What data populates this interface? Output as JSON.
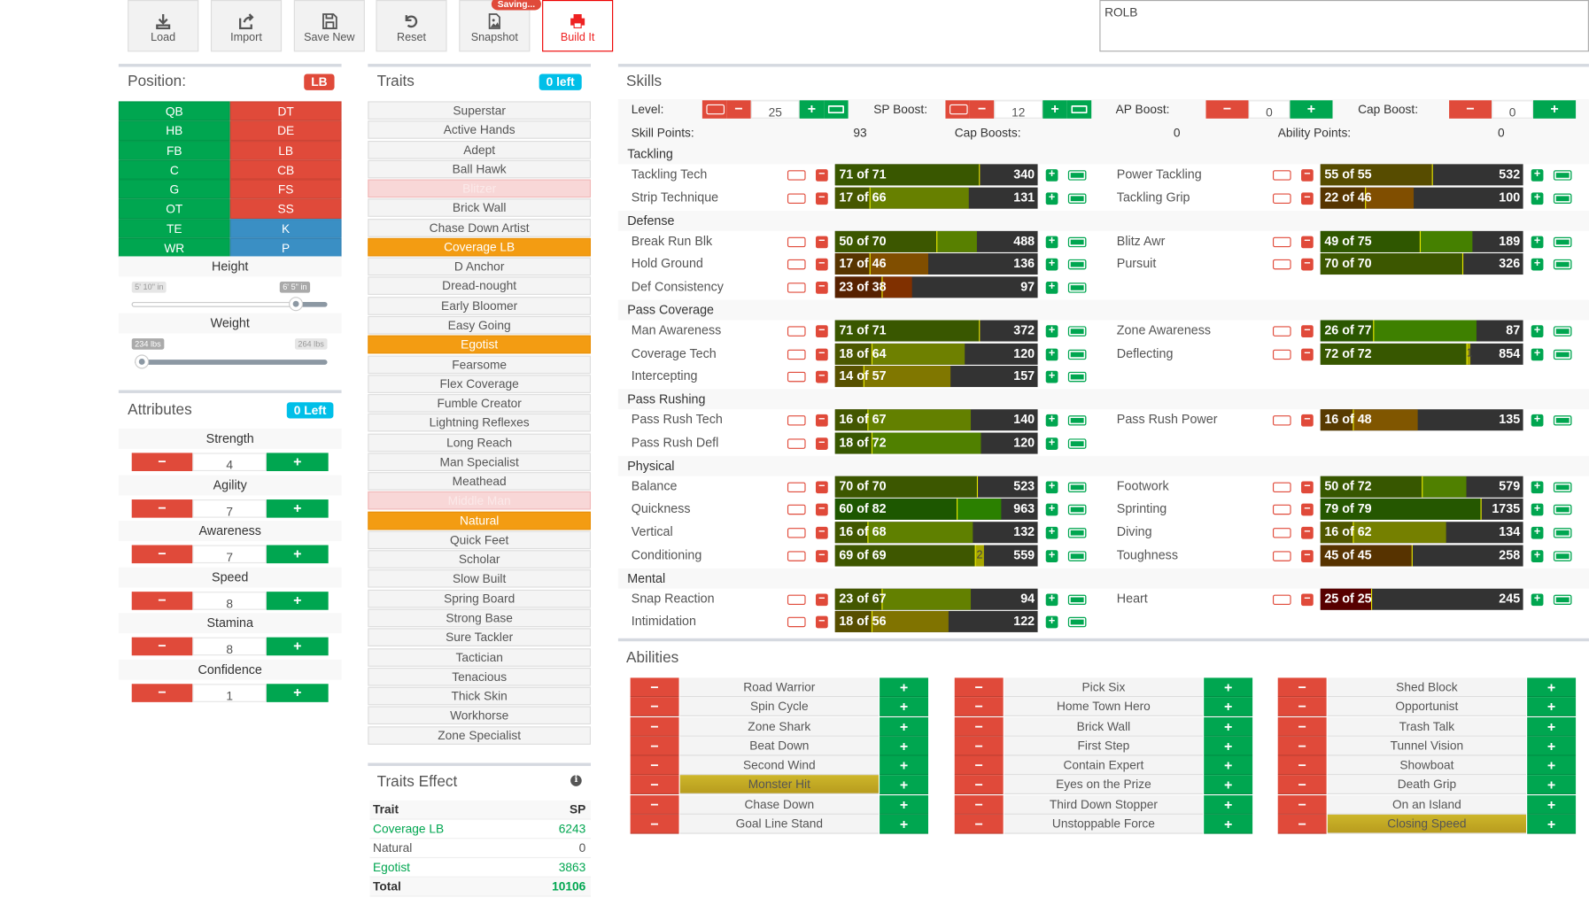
{
  "toolbar": {
    "buttons": [
      {
        "label": "Load",
        "icon": "download-icon"
      },
      {
        "label": "Import",
        "icon": "share-icon"
      },
      {
        "label": "Save New",
        "icon": "floppy-icon"
      },
      {
        "label": "Reset",
        "icon": "undo-icon"
      },
      {
        "label": "Snapshot",
        "icon": "image-file-icon"
      },
      {
        "label": "Build It",
        "icon": "printer-icon"
      }
    ],
    "saving_badge": "Saving...",
    "notes_value": "ROLB"
  },
  "position": {
    "title": "Position:",
    "selected": "LB",
    "grid": [
      [
        "QB",
        "DT"
      ],
      [
        "HB",
        "DE"
      ],
      [
        "FB",
        "LB"
      ],
      [
        "C",
        "CB"
      ],
      [
        "G",
        "FS"
      ],
      [
        "OT",
        "SS"
      ],
      [
        "TE",
        "K"
      ],
      [
        "WR",
        "P"
      ]
    ],
    "height": {
      "label": "Height",
      "min": "5' 10\" in",
      "max": "6' 5\" in",
      "value": "6' 5\" in"
    },
    "weight": {
      "label": "Weight",
      "min": "234 lbs",
      "max": "264 lbs",
      "value": "234 lbs"
    }
  },
  "attributes": {
    "title": "Attributes",
    "left_badge": "0 Left",
    "items": [
      {
        "label": "Strength",
        "value": "4"
      },
      {
        "label": "Agility",
        "value": "7"
      },
      {
        "label": "Awareness",
        "value": "7"
      },
      {
        "label": "Speed",
        "value": "8"
      },
      {
        "label": "Stamina",
        "value": "8"
      },
      {
        "label": "Confidence",
        "value": "1"
      }
    ]
  },
  "traits": {
    "title": "Traits",
    "left_badge": "0 left",
    "items": [
      {
        "label": "Superstar",
        "state": ""
      },
      {
        "label": "Active Hands",
        "state": ""
      },
      {
        "label": "Adept",
        "state": ""
      },
      {
        "label": "Ball Hawk",
        "state": ""
      },
      {
        "label": "Blitzer",
        "state": "disabled"
      },
      {
        "label": "Brick Wall",
        "state": ""
      },
      {
        "label": "Chase Down Artist",
        "state": ""
      },
      {
        "label": "Coverage LB",
        "state": "selected"
      },
      {
        "label": "D Anchor",
        "state": ""
      },
      {
        "label": "Dread-nought",
        "state": ""
      },
      {
        "label": "Early Bloomer",
        "state": ""
      },
      {
        "label": "Easy Going",
        "state": ""
      },
      {
        "label": "Egotist",
        "state": "selected"
      },
      {
        "label": "Fearsome",
        "state": ""
      },
      {
        "label": "Flex Coverage",
        "state": ""
      },
      {
        "label": "Fumble Creator",
        "state": ""
      },
      {
        "label": "Lightning Reflexes",
        "state": ""
      },
      {
        "label": "Long Reach",
        "state": ""
      },
      {
        "label": "Man Specialist",
        "state": ""
      },
      {
        "label": "Meathead",
        "state": ""
      },
      {
        "label": "Middle Man",
        "state": "disabled"
      },
      {
        "label": "Natural",
        "state": "selected"
      },
      {
        "label": "Quick Feet",
        "state": ""
      },
      {
        "label": "Scholar",
        "state": ""
      },
      {
        "label": "Slow Built",
        "state": ""
      },
      {
        "label": "Spring Board",
        "state": ""
      },
      {
        "label": "Strong Base",
        "state": ""
      },
      {
        "label": "Sure Tackler",
        "state": ""
      },
      {
        "label": "Tactician",
        "state": ""
      },
      {
        "label": "Tenacious",
        "state": ""
      },
      {
        "label": "Thick Skin",
        "state": ""
      },
      {
        "label": "Workhorse",
        "state": ""
      },
      {
        "label": "Zone Specialist",
        "state": ""
      }
    ]
  },
  "traits_effect": {
    "title": "Traits Effect",
    "header": {
      "trait": "Trait",
      "sp": "SP"
    },
    "rows": [
      {
        "trait": "Coverage LB",
        "sp": "6243",
        "highlight": true
      },
      {
        "trait": "Natural",
        "sp": "0",
        "highlight": false
      },
      {
        "trait": "Egotist",
        "sp": "3863",
        "highlight": true
      }
    ],
    "total": {
      "label": "Total",
      "sp": "10106"
    }
  },
  "skills": {
    "title": "Skills",
    "level": {
      "label": "Level:",
      "value": "25"
    },
    "sp_boost": {
      "label": "SP Boost:",
      "value": "12"
    },
    "ap_boost": {
      "label": "AP Boost:",
      "value": "0"
    },
    "cap_boost": {
      "label": "Cap Boost:",
      "value": "0"
    },
    "skill_points": {
      "label": "Skill Points:",
      "value": "93"
    },
    "cap_boosts": {
      "label": "Cap Boosts:",
      "value": "0"
    },
    "ability_points": {
      "label": "Ability Points:",
      "value": "0"
    },
    "categories": [
      {
        "name": "Tackling",
        "left": [
          {
            "name": "Tackling Tech",
            "value": 71,
            "max": 71,
            "cost": "340"
          },
          {
            "name": "Strip Technique",
            "value": 17,
            "max": 66,
            "cost": "131"
          }
        ],
        "right": [
          {
            "name": "Power Tackling",
            "value": 55,
            "max": 55,
            "cost": "532"
          },
          {
            "name": "Tackling Grip",
            "value": 22,
            "max": 46,
            "cost": "100"
          }
        ]
      },
      {
        "name": "Defense",
        "left": [
          {
            "name": "Break Run Blk",
            "value": 50,
            "max": 70,
            "cost": "488"
          },
          {
            "name": "Hold Ground",
            "value": 17,
            "max": 46,
            "cost": "136"
          },
          {
            "name": "Def Consistency",
            "value": 23,
            "max": 38,
            "cost": "97"
          }
        ],
        "right": [
          {
            "name": "Blitz Awr",
            "value": 49,
            "max": 75,
            "cost": "189"
          },
          {
            "name": "Pursuit",
            "value": 70,
            "max": 70,
            "cost": "326"
          }
        ]
      },
      {
        "name": "Pass Coverage",
        "left": [
          {
            "name": "Man Awareness",
            "value": 71,
            "max": 71,
            "cost": "372"
          },
          {
            "name": "Coverage Tech",
            "value": 18,
            "max": 64,
            "cost": "120"
          },
          {
            "name": "Intercepting",
            "value": 14,
            "max": 57,
            "cost": "157"
          }
        ],
        "right": [
          {
            "name": "Zone Awareness",
            "value": 26,
            "max": 77,
            "cost": "87"
          },
          {
            "name": "Deflecting",
            "value": 72,
            "max": 72,
            "cost": "854",
            "extra": "1"
          }
        ]
      },
      {
        "name": "Pass Rushing",
        "left": [
          {
            "name": "Pass Rush Tech",
            "value": 16,
            "max": 67,
            "cost": "140"
          },
          {
            "name": "Pass Rush Defl",
            "value": 18,
            "max": 72,
            "cost": "120"
          }
        ],
        "right": [
          {
            "name": "Pass Rush Power",
            "value": 16,
            "max": 48,
            "cost": "135"
          }
        ]
      },
      {
        "name": "Physical",
        "left": [
          {
            "name": "Balance",
            "value": 70,
            "max": 70,
            "cost": "523"
          },
          {
            "name": "Quickness",
            "value": 60,
            "max": 82,
            "cost": "963"
          },
          {
            "name": "Vertical",
            "value": 16,
            "max": 68,
            "cost": "132"
          },
          {
            "name": "Conditioning",
            "value": 69,
            "max": 69,
            "cost": "559",
            "extra": "2"
          }
        ],
        "right": [
          {
            "name": "Footwork",
            "value": 50,
            "max": 72,
            "cost": "579"
          },
          {
            "name": "Sprinting",
            "value": 79,
            "max": 79,
            "cost": "1735"
          },
          {
            "name": "Diving",
            "value": 16,
            "max": 62,
            "cost": "134"
          },
          {
            "name": "Toughness",
            "value": 45,
            "max": 45,
            "cost": "258"
          }
        ]
      },
      {
        "name": "Mental",
        "left": [
          {
            "name": "Snap Reaction",
            "value": 23,
            "max": 67,
            "cost": "94"
          },
          {
            "name": "Intimidation",
            "value": 18,
            "max": 56,
            "cost": "122"
          }
        ],
        "right": [
          {
            "name": "Heart",
            "value": 25,
            "max": 25,
            "cost": "245"
          }
        ]
      }
    ]
  },
  "abilities": {
    "title": "Abilities",
    "columns": [
      [
        {
          "label": "Road Warrior"
        },
        {
          "label": "Spin Cycle"
        },
        {
          "label": "Zone Shark"
        },
        {
          "label": "Beat Down"
        },
        {
          "label": "Second Wind"
        },
        {
          "label": "Monster Hit",
          "selected": true
        },
        {
          "label": "Chase Down"
        },
        {
          "label": "Goal Line Stand"
        }
      ],
      [
        {
          "label": "Pick Six"
        },
        {
          "label": "Home Town Hero"
        },
        {
          "label": "Brick Wall"
        },
        {
          "label": "First Step"
        },
        {
          "label": "Contain Expert"
        },
        {
          "label": "Eyes on the Prize"
        },
        {
          "label": "Third Down Stopper"
        },
        {
          "label": "Unstoppable Force"
        }
      ],
      [
        {
          "label": "Shed Block"
        },
        {
          "label": "Opportunist"
        },
        {
          "label": "Trash Talk"
        },
        {
          "label": "Tunnel Vision"
        },
        {
          "label": "Showboat"
        },
        {
          "label": "Death Grip"
        },
        {
          "label": "On an Island"
        },
        {
          "label": "Closing Speed",
          "selected": true
        }
      ]
    ]
  },
  "colors": {
    "red": "#e04a3a",
    "green": "#00a650",
    "blue": "#3a8fc4",
    "orange": "#f39c12",
    "cyan": "#00bfe8",
    "gold": "#c8ae26"
  }
}
